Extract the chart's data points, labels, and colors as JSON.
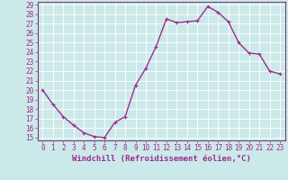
{
  "x": [
    0,
    1,
    2,
    3,
    4,
    5,
    6,
    7,
    8,
    9,
    10,
    11,
    12,
    13,
    14,
    15,
    16,
    17,
    18,
    19,
    20,
    21,
    22,
    23
  ],
  "y": [
    20.0,
    18.5,
    17.2,
    16.3,
    15.5,
    15.1,
    15.0,
    16.6,
    17.2,
    20.5,
    22.3,
    24.6,
    27.5,
    27.1,
    27.2,
    27.3,
    28.8,
    28.2,
    27.2,
    25.0,
    23.9,
    23.8,
    22.0,
    21.7
  ],
  "line_color": "#9b2d8e",
  "marker": "+",
  "background_color": "#cce9e9",
  "grid_color": "#ffffff",
  "xlabel": "Windchill (Refroidissement éolien,°C)",
  "ylim_min": 15,
  "ylim_max": 29,
  "xlim_min": 0,
  "xlim_max": 23,
  "yticks": [
    15,
    16,
    17,
    18,
    19,
    20,
    21,
    22,
    23,
    24,
    25,
    26,
    27,
    28,
    29
  ],
  "xticks": [
    0,
    1,
    2,
    3,
    4,
    5,
    6,
    7,
    8,
    9,
    10,
    11,
    12,
    13,
    14,
    15,
    16,
    17,
    18,
    19,
    20,
    21,
    22,
    23
  ],
  "xlabel_fontsize": 6.5,
  "tick_fontsize": 5.5,
  "line_width": 1.0,
  "marker_size": 3,
  "spine_color": "#7a3b7a"
}
